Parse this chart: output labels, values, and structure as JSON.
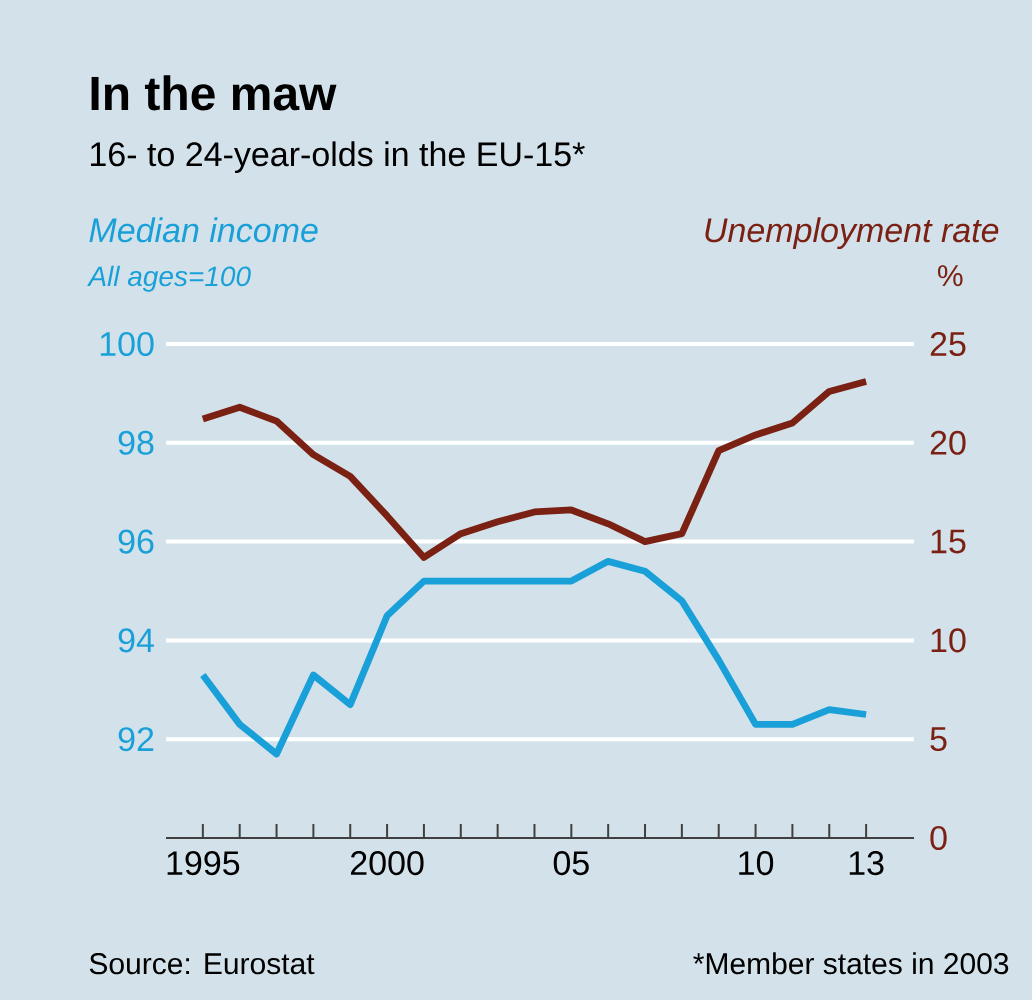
{
  "chart_data": {
    "type": "line",
    "title": "In the maw",
    "subtitle": "16- to 24-year-olds in the EU-15*",
    "ylabel": "Median income",
    "y2label": "Unemployment rate",
    "annotations": [
      "All ages=100",
      "%",
      "Source: Eurostat",
      "*Member states in 2003"
    ],
    "x": [
      1995,
      1996,
      1997,
      1998,
      1999,
      2000,
      2001,
      2002,
      2003,
      2004,
      2005,
      2006,
      2007,
      2008,
      2009,
      2010,
      2011,
      2012,
      2013
    ],
    "series": [
      {
        "color": "#1aa0d8",
        "axis": "y",
        "values": [
          93.3,
          92.3,
          91.7,
          93.3,
          92.7,
          94.5,
          95.2,
          95.2,
          95.2,
          95.2,
          95.2,
          95.6,
          95.4,
          94.8,
          93.6,
          92.3,
          92.3,
          92.6,
          92.5
        ]
      },
      {
        "color": "#7a2114",
        "axis": "y2",
        "values": [
          21.2,
          21.8,
          21.1,
          19.4,
          18.3,
          16.3,
          14.2,
          15.4,
          16.0,
          16.5,
          16.6,
          15.9,
          15.0,
          15.4,
          19.6,
          20.4,
          21.0,
          22.6,
          23.1
        ]
      }
    ],
    "xlim": [
      1994,
      2014.3
    ],
    "ylim": [
      90,
      100
    ],
    "y2lim": [
      0,
      25
    ],
    "xticks": [
      {
        "value": 1995,
        "label": "1995"
      },
      {
        "value": 1996,
        "label": null
      },
      {
        "value": 1997,
        "label": null
      },
      {
        "value": 1998,
        "label": null
      },
      {
        "value": 1999,
        "label": null
      },
      {
        "value": 2000,
        "label": "2000"
      },
      {
        "value": 2001,
        "label": null
      },
      {
        "value": 2002,
        "label": null
      },
      {
        "value": 2003,
        "label": null
      },
      {
        "value": 2004,
        "label": null
      },
      {
        "value": 2005,
        "label": "05"
      },
      {
        "value": 2006,
        "label": null
      },
      {
        "value": 2007,
        "label": null
      },
      {
        "value": 2008,
        "label": null
      },
      {
        "value": 2009,
        "label": null
      },
      {
        "value": 2010,
        "label": "10"
      },
      {
        "value": 2011,
        "label": null
      },
      {
        "value": 2012,
        "label": null
      },
      {
        "value": 2013,
        "label": "13"
      }
    ],
    "yticks": [
      92,
      94,
      96,
      98,
      100
    ],
    "y2ticks": [
      0,
      5,
      10,
      15,
      20,
      25
    ],
    "grid": "y",
    "line_style": "solid",
    "marker": "none"
  }
}
